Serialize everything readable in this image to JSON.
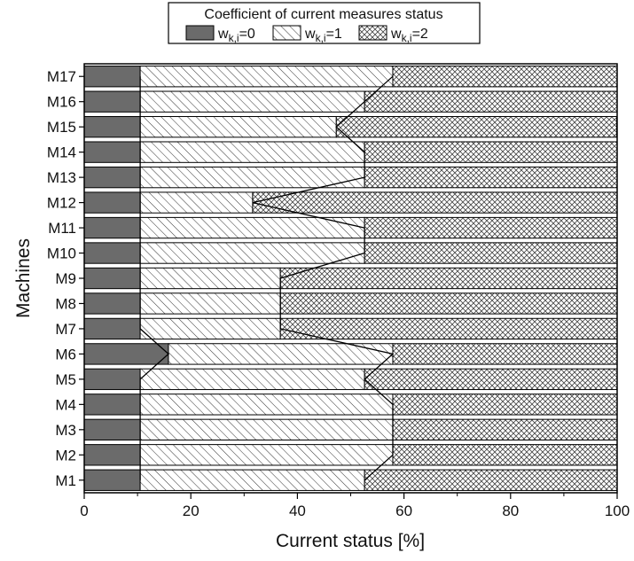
{
  "chart_data": {
    "type": "bar",
    "stacked": true,
    "orientation": "horizontal",
    "legend_title": "Coefficient of current measures status",
    "legend_placement": "top-center",
    "xlabel": "Current status [%]",
    "ylabel": "Machines",
    "xlim": [
      0,
      100
    ],
    "x_ticks": [
      "0",
      "20",
      "40",
      "60",
      "80",
      "100"
    ],
    "categories": [
      "M1",
      "M2",
      "M3",
      "M4",
      "M5",
      "M6",
      "M7",
      "M8",
      "M9",
      "M10",
      "M11",
      "M12",
      "M13",
      "M14",
      "M15",
      "M16",
      "M17"
    ],
    "series": [
      {
        "name_base": "w",
        "name_sub": "k,i",
        "name_value": "=0",
        "color": "#6b6b6b",
        "pattern": "solid",
        "values": [
          10.5,
          10.5,
          10.5,
          10.5,
          10.5,
          15.8,
          10.5,
          10.5,
          10.5,
          10.5,
          10.5,
          10.5,
          10.5,
          10.5,
          10.5,
          10.5,
          10.5
        ]
      },
      {
        "name_base": "w",
        "name_sub": "k,i",
        "name_value": "=1",
        "color": "#ffffff",
        "pattern": "diagonal",
        "values": [
          42.1,
          47.4,
          47.4,
          47.4,
          42.1,
          42.1,
          26.3,
          26.3,
          26.3,
          42.1,
          42.1,
          21.1,
          42.1,
          42.1,
          36.8,
          42.1,
          47.4
        ]
      },
      {
        "name_base": "w",
        "name_sub": "k,i",
        "name_value": "=2",
        "color": "#9a9a9a",
        "pattern": "crosshatch",
        "values": [
          47.4,
          42.1,
          42.1,
          42.1,
          47.4,
          42.1,
          63.2,
          63.2,
          63.2,
          47.4,
          47.4,
          68.4,
          47.4,
          47.4,
          52.6,
          47.4,
          42.1
        ]
      }
    ]
  }
}
